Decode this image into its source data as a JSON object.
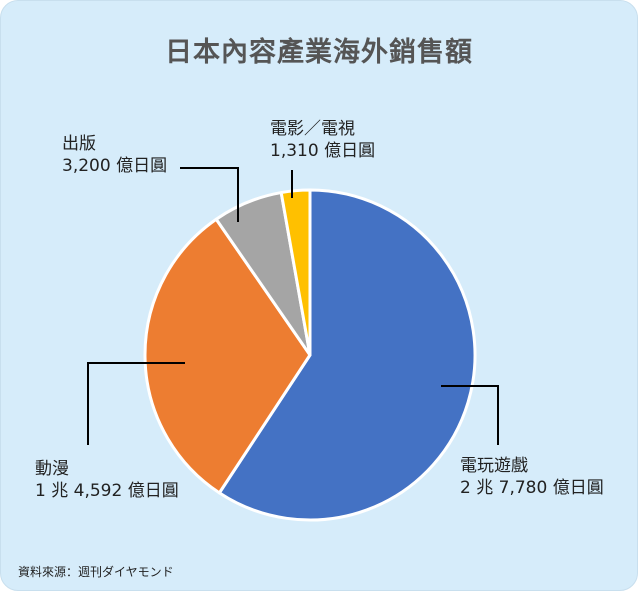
{
  "title": "日本內容產業海外銷售額",
  "source": "資料來源：週刊ダイヤモンド",
  "chart_data": {
    "type": "pie",
    "title": "日本內容產業海外銷售額",
    "unit": "億日圓",
    "start_angle_deg": 0,
    "direction": "clockwise",
    "legend": "none",
    "slices": [
      {
        "key": "game",
        "name": "電玩遊戲",
        "value": 27780,
        "value_label": "2 兆 7,780 億日圓",
        "color": "#4472c4"
      },
      {
        "key": "anime",
        "name": "動漫",
        "value": 14592,
        "value_label": "1 兆 4,592 億日圓",
        "color": "#ed7d31"
      },
      {
        "key": "pub",
        "name": "出版",
        "value": 3200,
        "value_label": "3,200 億日圓",
        "color": "#a5a5a5"
      },
      {
        "key": "film",
        "name": "電影／電視",
        "value": 1310,
        "value_label": "1,310 億日圓",
        "color": "#ffc000"
      }
    ]
  }
}
